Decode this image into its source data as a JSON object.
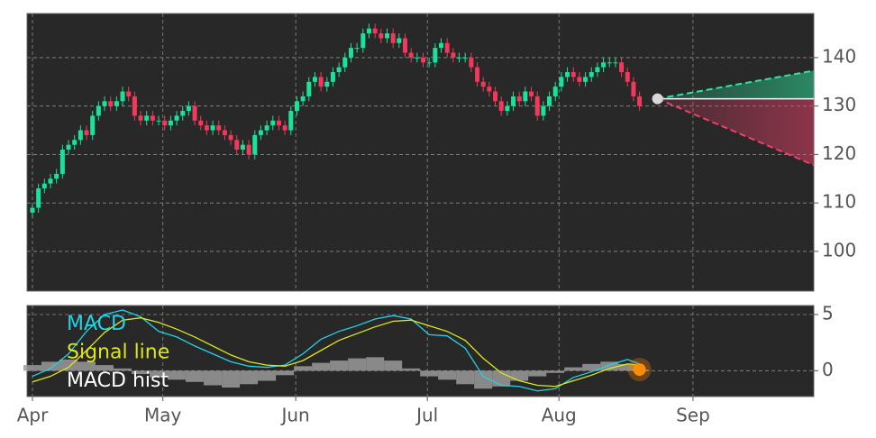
{
  "chart_data": [
    {
      "type": "candlestick",
      "open": [
        108,
        109,
        113,
        114,
        115,
        116,
        121,
        122,
        123,
        125,
        124,
        128,
        130,
        131,
        130,
        131,
        133,
        132,
        128,
        127,
        128,
        127,
        127,
        126,
        127,
        128,
        129,
        130,
        127,
        126,
        125,
        126,
        125,
        124,
        123,
        121,
        122,
        120,
        124,
        125,
        126,
        127,
        126,
        125,
        129,
        131,
        132,
        135,
        136,
        134,
        135,
        137,
        138,
        140,
        142,
        142,
        145,
        146,
        145,
        144,
        145,
        143,
        144,
        141,
        140,
        140,
        139,
        139,
        142,
        143,
        141,
        140,
        140,
        140,
        138,
        135,
        134,
        133,
        131,
        129,
        130,
        132,
        131,
        133,
        132,
        128,
        130,
        132,
        134,
        136,
        137,
        136,
        135,
        136,
        137,
        138,
        139,
        139,
        139,
        137,
        135,
        132
      ],
      "high": [
        110,
        114,
        115,
        116,
        117,
        122,
        123,
        124,
        126,
        126,
        129,
        131,
        132,
        132,
        132,
        134,
        134,
        133,
        129,
        129,
        129,
        128,
        128,
        128,
        129,
        130,
        131,
        131,
        128,
        127,
        127,
        127,
        126,
        125,
        124,
        123,
        123,
        125,
        126,
        127,
        128,
        128,
        127,
        130,
        132,
        133,
        136,
        137,
        137,
        136,
        138,
        139,
        141,
        143,
        143,
        146,
        147,
        147,
        146,
        146,
        146,
        145,
        145,
        142,
        141,
        141,
        140,
        143,
        144,
        144,
        142,
        141,
        141,
        141,
        139,
        136,
        135,
        134,
        132,
        131,
        133,
        133,
        134,
        134,
        133,
        131,
        133,
        135,
        137,
        138,
        138,
        137,
        137,
        138,
        139,
        140,
        140,
        140,
        140,
        138,
        136,
        133
      ],
      "low": [
        107,
        108,
        112,
        113,
        114,
        115,
        120,
        121,
        122,
        123,
        123,
        127,
        129,
        129,
        129,
        130,
        131,
        127,
        126,
        126,
        126,
        126,
        125,
        125,
        126,
        127,
        128,
        126,
        125,
        124,
        124,
        124,
        123,
        122,
        120,
        120,
        119,
        119,
        123,
        124,
        125,
        125,
        124,
        124,
        128,
        130,
        131,
        134,
        133,
        133,
        134,
        136,
        137,
        139,
        141,
        141,
        144,
        144,
        143,
        143,
        142,
        142,
        140,
        139,
        139,
        138,
        138,
        138,
        141,
        140,
        139,
        139,
        139,
        137,
        134,
        133,
        132,
        130,
        128,
        128,
        129,
        130,
        130,
        131,
        127,
        127,
        129,
        131,
        133,
        135,
        135,
        134,
        134,
        135,
        136,
        137,
        138,
        138,
        136,
        134,
        131,
        129
      ],
      "close": [
        109,
        113,
        114,
        115,
        116,
        121,
        122,
        123,
        125,
        124,
        128,
        130,
        131,
        130,
        131,
        133,
        132,
        128,
        127,
        128,
        127,
        127,
        126,
        127,
        128,
        129,
        130,
        127,
        126,
        125,
        126,
        125,
        124,
        123,
        121,
        122,
        120,
        124,
        125,
        126,
        127,
        126,
        125,
        129,
        131,
        132,
        135,
        136,
        134,
        135,
        137,
        138,
        140,
        142,
        142,
        145,
        146,
        145,
        144,
        145,
        143,
        144,
        141,
        140,
        140,
        139,
        139,
        142,
        143,
        141,
        140,
        140,
        140,
        138,
        135,
        134,
        133,
        131,
        129,
        130,
        132,
        131,
        133,
        132,
        128,
        130,
        132,
        134,
        136,
        137,
        136,
        135,
        136,
        137,
        138,
        139,
        139,
        139,
        137,
        135,
        132,
        130
      ],
      "up_color": "#19e39b",
      "down_color": "#f2395b",
      "forecast": {
        "x": [
          104,
          130
        ],
        "upper": [
          131.5,
          137.3
        ],
        "lower": [
          131.5,
          117.8
        ],
        "upper_color": "#2ee6a0",
        "lower_color": "#f0406a"
      },
      "ylim": [
        91.8,
        149.1
      ],
      "yticks": [
        100,
        110,
        120,
        130,
        140
      ],
      "grid": true
    },
    {
      "type": "macd",
      "x": [
        0,
        3,
        6,
        9,
        12,
        15,
        18,
        21,
        24,
        27,
        30,
        33,
        36,
        39,
        42,
        45,
        48,
        51,
        54,
        57,
        60,
        63,
        66,
        69,
        72,
        75,
        78,
        81,
        84,
        87,
        90,
        93,
        96,
        99,
        101
      ],
      "series": [
        {
          "name": "MACD",
          "color": "#22d3e6",
          "values": [
            -0.5,
            0.2,
            1.5,
            3.5,
            5.0,
            5.4,
            4.8,
            3.5,
            3.0,
            2.2,
            1.5,
            0.8,
            0.4,
            0.3,
            0.5,
            1.5,
            2.8,
            3.5,
            4.0,
            4.6,
            4.9,
            4.6,
            3.2,
            3.1,
            2.0,
            -0.5,
            -1.3,
            -1.4,
            -1.8,
            -1.6,
            -0.6,
            -0.1,
            0.5,
            1.0,
            0.6
          ]
        },
        {
          "name": "Signal line",
          "color": "#dfe51c",
          "values": [
            -1.0,
            -0.5,
            0.3,
            1.8,
            3.4,
            4.5,
            4.7,
            4.3,
            3.7,
            3.0,
            2.2,
            1.4,
            0.8,
            0.5,
            0.4,
            0.9,
            1.8,
            2.7,
            3.3,
            3.9,
            4.4,
            4.5,
            4.0,
            3.5,
            2.7,
            1.1,
            -0.2,
            -0.9,
            -1.3,
            -1.4,
            -0.9,
            -0.4,
            0.2,
            0.6,
            0.5
          ]
        },
        {
          "name": "MACD hist",
          "color": "#9a9a9a",
          "values": [
            0.5,
            0.8,
            1.0,
            0.8,
            0.5,
            0.2,
            -0.3,
            -0.6,
            -0.8,
            -1.0,
            -1.3,
            -1.5,
            -1.2,
            -0.9,
            -0.4,
            0.4,
            0.7,
            0.9,
            1.1,
            1.2,
            0.9,
            0.2,
            -0.5,
            -0.8,
            -1.2,
            -1.6,
            -1.4,
            -0.9,
            -0.5,
            -0.2,
            0.3,
            0.6,
            0.8,
            0.6,
            0.1
          ]
        }
      ],
      "marker_color": "#ff8c00",
      "xlim": [
        -0.9,
        130
      ],
      "xticks": [
        {
          "value": 0,
          "label": "Apr"
        },
        {
          "value": 21.7,
          "label": "May"
        },
        {
          "value": 43.8,
          "label": "Jun"
        },
        {
          "value": 65.7,
          "label": "Jul"
        },
        {
          "value": 87.6,
          "label": "Aug"
        },
        {
          "value": 109.9,
          "label": "Sep"
        }
      ],
      "ylim": [
        -2.3,
        5.8
      ],
      "yticks": [
        0,
        5
      ],
      "grid": true
    }
  ]
}
